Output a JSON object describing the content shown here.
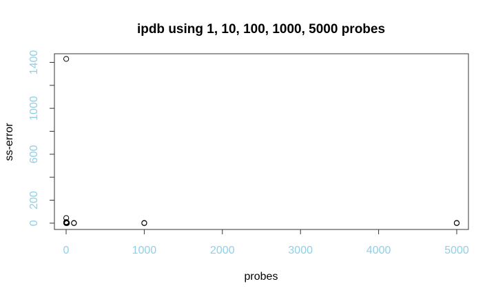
{
  "chart_data": {
    "type": "scatter",
    "title": "ipdb using 1, 10, 100, 1000, 5000 probes",
    "xlabel": "probes",
    "ylabel": "ss-error",
    "xlim": [
      -150,
      5150
    ],
    "ylim": [
      -55,
      1475
    ],
    "x_ticks": [
      0,
      1000,
      2000,
      3000,
      4000,
      5000
    ],
    "y_ticks": [
      0,
      200,
      600,
      1000,
      1400
    ],
    "y_minor_ticks": [
      0,
      200,
      400,
      600,
      800,
      1000,
      1200,
      1400
    ],
    "tick_label_color": "#8fd0e6",
    "point_color": "#000000",
    "grid": false,
    "points": [
      {
        "x": 1,
        "y": 1430
      },
      {
        "x": 1,
        "y": 45
      },
      {
        "x": 1,
        "y": 10
      },
      {
        "x": 1,
        "y": 5
      },
      {
        "x": 1,
        "y": 2
      },
      {
        "x": 1,
        "y": 0
      },
      {
        "x": 10,
        "y": 3
      },
      {
        "x": 10,
        "y": 0
      },
      {
        "x": 100,
        "y": 2
      },
      {
        "x": 100,
        "y": 0
      },
      {
        "x": 1000,
        "y": 2
      },
      {
        "x": 1000,
        "y": 0
      },
      {
        "x": 5000,
        "y": 2
      },
      {
        "x": 5000,
        "y": 0
      }
    ]
  }
}
